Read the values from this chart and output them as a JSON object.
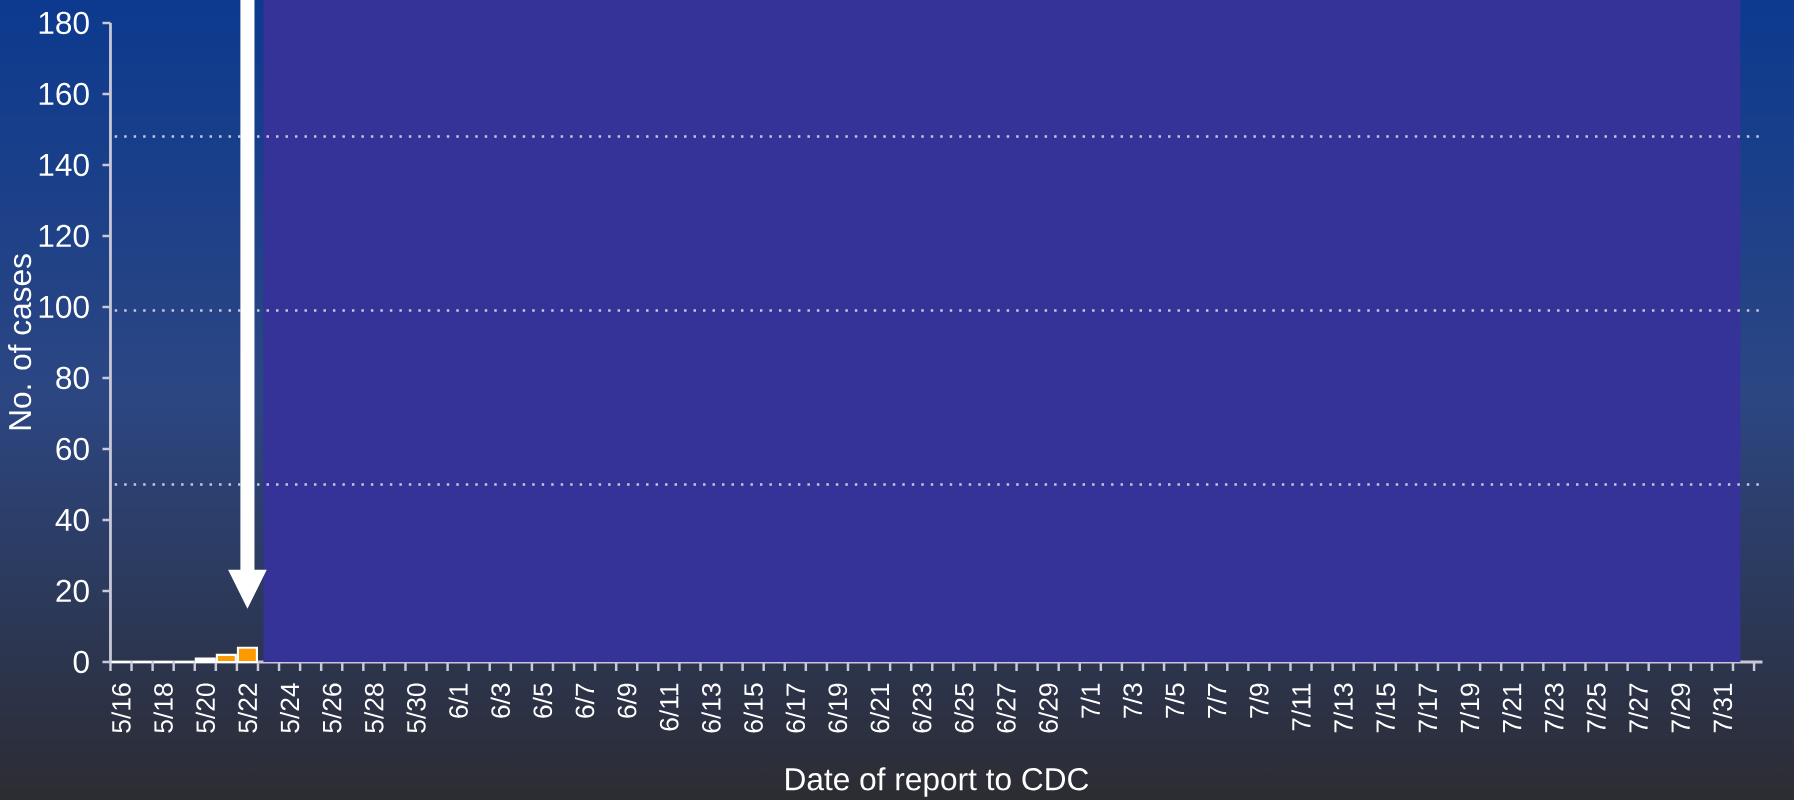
{
  "chart_data": {
    "type": "bar",
    "xlabel": "Date of report to CDC",
    "ylabel": "No. of cases",
    "categories": [
      "5/16",
      null,
      "5/18",
      null,
      "5/20",
      null,
      "5/22",
      null,
      "5/24",
      null,
      "5/26",
      null,
      "5/28",
      null,
      "5/30",
      null,
      "6/1",
      null,
      "6/3",
      null,
      "6/5",
      null,
      "6/7",
      null,
      "6/9",
      null,
      "6/11",
      null,
      "6/13",
      null,
      "6/15",
      null,
      "6/17",
      null,
      "6/19",
      null,
      "6/21",
      null,
      "6/23",
      null,
      "6/25",
      null,
      "6/27",
      null,
      "6/29",
      null,
      "7/1",
      null,
      "7/3",
      null,
      "7/5",
      null,
      "7/7",
      null,
      "7/9",
      null,
      "7/11",
      null,
      "7/13",
      null,
      "7/15",
      null,
      "7/17",
      null,
      "7/19",
      null,
      "7/21",
      null,
      "7/23",
      null,
      "7/25",
      null,
      "7/27",
      null,
      "7/29",
      null,
      "7/31"
    ],
    "values": [
      0,
      0,
      0,
      0,
      1,
      2,
      4,
      null,
      null,
      null,
      null,
      null,
      null,
      null,
      null,
      null,
      null,
      null,
      null,
      null,
      null,
      null,
      null,
      null,
      null,
      null,
      null,
      null,
      null,
      null,
      null,
      null,
      null,
      null,
      null,
      null,
      null,
      null,
      null,
      null,
      null,
      null,
      null,
      null,
      null,
      null,
      null,
      null,
      null,
      null,
      null,
      null,
      null,
      null,
      null,
      null,
      null,
      null,
      null,
      null,
      null,
      null,
      null,
      null,
      null,
      null,
      null,
      null,
      null,
      null,
      null,
      null,
      null,
      null,
      null,
      null,
      null
    ],
    "colors": [
      "#ff9900",
      "#ff9900",
      "#ff9900",
      "#ff9900",
      "#ffffff",
      "#ff9900",
      "#ff9900",
      "#ff9900",
      "#ff9900",
      "#ff9900",
      "#ff9900",
      "#ff9900",
      "#ff9900",
      "#ff9900",
      "#ff9900",
      "#ff9900",
      "#ff9900",
      "#ff9900",
      "#ff9900",
      "#ff9900",
      "#ff9900",
      "#ff9900",
      "#ff9900",
      "#ff9900",
      "#ff9900",
      "#ff9900",
      "#ff9900",
      "#ff9900",
      "#ff9900",
      "#ff9900",
      "#ff9900",
      "#ff9900",
      "#ff9900",
      "#ff9900",
      "#ff9900",
      "#ff9900",
      "#ff9900",
      "#ff9900",
      "#ff9900",
      "#ff9900",
      "#ff9900",
      "#ff9900",
      "#ff9900",
      "#ff9900",
      "#ff9900",
      "#ff9900",
      "#ff9900",
      "#ff9900",
      "#ff9900",
      "#ff9900",
      "#ff9900",
      "#ff9900",
      "#ff9900",
      "#ff9900",
      "#ff9900",
      "#ff9900",
      "#ff9900",
      "#ff9900",
      "#ff9900",
      "#ff9900",
      "#ff9900",
      "#ff9900",
      "#ff9900",
      "#ff9900",
      "#ff9900",
      "#ff9900",
      "#ff9900",
      "#ff9900",
      "#ff9900",
      "#ff9900",
      "#ff9900",
      "#ff9900",
      "#ff9900",
      "#ff9900",
      "#ff9900",
      "#ff9900",
      "#ff9900"
    ],
    "ylim": [
      0,
      180
    ],
    "yticks": [
      0,
      20,
      40,
      60,
      80,
      100,
      120,
      140,
      160,
      180
    ],
    "ref_lines": [
      {
        "axis": "y",
        "value": 148,
        "color": "#c8c8dc",
        "line_style": "dotted"
      },
      {
        "axis": "y",
        "value": 99,
        "color": "#c8c8dc",
        "line_style": "dotted"
      },
      {
        "axis": "y",
        "value": 50,
        "color": "#c8c8dc",
        "line_style": "dotted"
      }
    ]
  }
}
